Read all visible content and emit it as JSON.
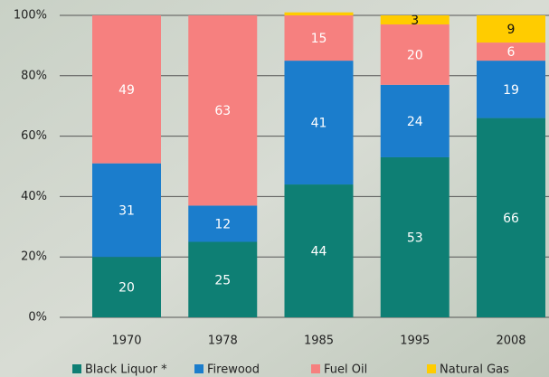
{
  "chart_data": {
    "type": "stacked-bar",
    "categories": [
      "1970",
      "1978",
      "1985",
      "1995",
      "2008"
    ],
    "series": [
      {
        "name": "Black Liquor *",
        "color": "#0e7f74",
        "values": [
          20,
          25,
          44,
          53,
          66
        ]
      },
      {
        "name": "Firewood",
        "color": "#1b7dcc",
        "values": [
          31,
          12,
          41,
          24,
          19
        ]
      },
      {
        "name": "Fuel Oil",
        "color": "#f6807f",
        "values": [
          49,
          63,
          15,
          20,
          6
        ]
      },
      {
        "name": "Natural Gas",
        "color": "#ffcc00",
        "values": [
          0,
          0,
          1,
          3,
          9
        ],
        "value_labels": [
          null,
          null,
          null,
          "3",
          "9"
        ]
      }
    ],
    "ylim": [
      0,
      100
    ],
    "yticks": [
      {
        "value": 0,
        "label": "0%"
      },
      {
        "value": 20,
        "label": "20%"
      },
      {
        "value": 40,
        "label": "40%"
      },
      {
        "value": 60,
        "label": "60%"
      },
      {
        "value": 80,
        "label": "80%"
      },
      {
        "value": 100,
        "label": "100%"
      }
    ],
    "grid": true
  }
}
